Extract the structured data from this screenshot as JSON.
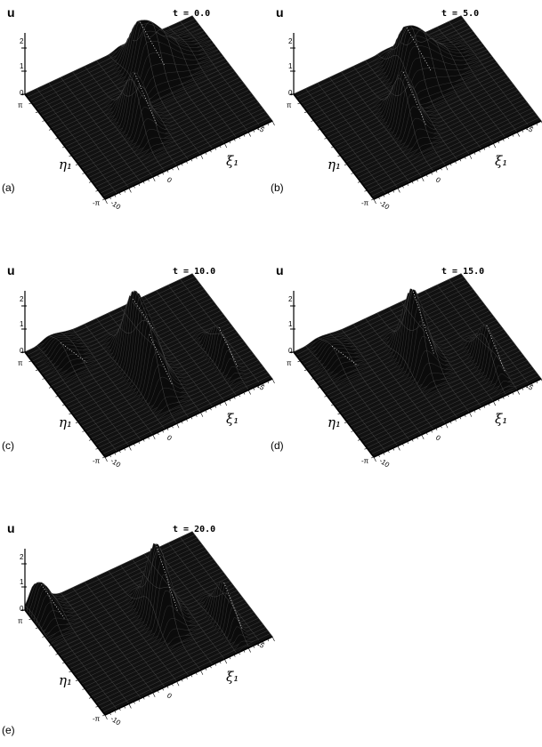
{
  "figure": {
    "panels": [
      {
        "id": "a",
        "label": "(a)",
        "time_text": "t = 0.0"
      },
      {
        "id": "b",
        "label": "(b)",
        "time_text": "t = 5.0"
      },
      {
        "id": "c",
        "label": "(c)",
        "time_text": "t = 10.0"
      },
      {
        "id": "d",
        "label": "(d)",
        "time_text": "t = 15.0"
      },
      {
        "id": "e",
        "label": "(e)",
        "time_text": "t = 20.0"
      }
    ],
    "u_axis_label": "u",
    "eta_axis_label": "η₁",
    "xi_axis_label": "ξ₁",
    "u_ticks": [
      "0",
      "1",
      "2"
    ],
    "eta_ticks": [
      "π",
      "-π"
    ],
    "xi_ticks": [
      "-10",
      "0",
      "25"
    ]
  },
  "chart_data": [
    {
      "type": "surface",
      "title": "t = 0.0",
      "xlabel": "ξ₁",
      "ylabel": "η₁",
      "zlabel": "u",
      "xlim": [
        -10,
        25
      ],
      "ylim": [
        -3.14159,
        3.14159
      ],
      "zlim": [
        0,
        2.5
      ],
      "humps": [
        {
          "xi": 3,
          "eta": -0.6,
          "height": 2.35,
          "width": 1.5,
          "skew": 4
        },
        {
          "xi": 10,
          "eta": 1.6,
          "height": 2.3,
          "width": 1.8,
          "skew": 12
        }
      ]
    },
    {
      "type": "surface",
      "title": "t = 5.0",
      "xlabel": "ξ₁",
      "ylabel": "η₁",
      "zlabel": "u",
      "xlim": [
        -10,
        25
      ],
      "ylim": [
        -3.14159,
        3.14159
      ],
      "zlim": [
        0,
        2.5
      ],
      "humps": [
        {
          "xi": 3,
          "eta": -0.6,
          "height": 2.4,
          "width": 1.5,
          "skew": 4
        },
        {
          "xi": 9,
          "eta": 1.4,
          "height": 2.3,
          "width": 1.8,
          "skew": 12
        }
      ]
    },
    {
      "type": "surface",
      "title": "t = 10.0",
      "xlabel": "ξ₁",
      "ylabel": "η₁",
      "zlabel": "u",
      "xlim": [
        -10,
        25
      ],
      "ylim": [
        -3.14159,
        3.14159
      ],
      "zlim": [
        0,
        2.5
      ],
      "humps": [
        {
          "xi": 5,
          "eta": -1.0,
          "height": 2.3,
          "width": 1.6,
          "skew": 4
        },
        {
          "xi": 5,
          "eta": 0.3,
          "height": 2.9,
          "width": 1.4,
          "skew": 5
        },
        {
          "xi": 19,
          "eta": -1.2,
          "height": 1.4,
          "width": 1.0,
          "skew": 2
        },
        {
          "xi": -5,
          "eta": 2.2,
          "height": 0.6,
          "width": 2.0,
          "skew": 3
        }
      ]
    },
    {
      "type": "surface",
      "title": "t = 15.0",
      "xlabel": "ξ₁",
      "ylabel": "η₁",
      "zlabel": "u",
      "xlim": [
        -10,
        25
      ],
      "ylim": [
        -3.14159,
        3.14159
      ],
      "zlim": [
        0,
        2.5
      ],
      "humps": [
        {
          "xi": 7,
          "eta": 0.2,
          "height": 3.2,
          "width": 1.4,
          "skew": 5
        },
        {
          "xi": 18,
          "eta": -1.5,
          "height": 1.8,
          "width": 1.0,
          "skew": 2
        },
        {
          "xi": -5,
          "eta": 2.0,
          "height": 0.6,
          "width": 2.0,
          "skew": 3
        }
      ]
    },
    {
      "type": "surface",
      "title": "t = 20.0",
      "xlabel": "ξ₁",
      "ylabel": "η₁",
      "zlabel": "u",
      "xlim": [
        -10,
        25
      ],
      "ylim": [
        -3.14159,
        3.14159
      ],
      "zlim": [
        0,
        2.5
      ],
      "humps": [
        {
          "xi": 9,
          "eta": 0.0,
          "height": 3.3,
          "width": 1.4,
          "skew": 5
        },
        {
          "xi": 19,
          "eta": -1.6,
          "height": 1.8,
          "width": 1.0,
          "skew": 2
        },
        {
          "xi": -8,
          "eta": 2.6,
          "height": 1.3,
          "width": 1.6,
          "skew": 3
        }
      ]
    }
  ]
}
